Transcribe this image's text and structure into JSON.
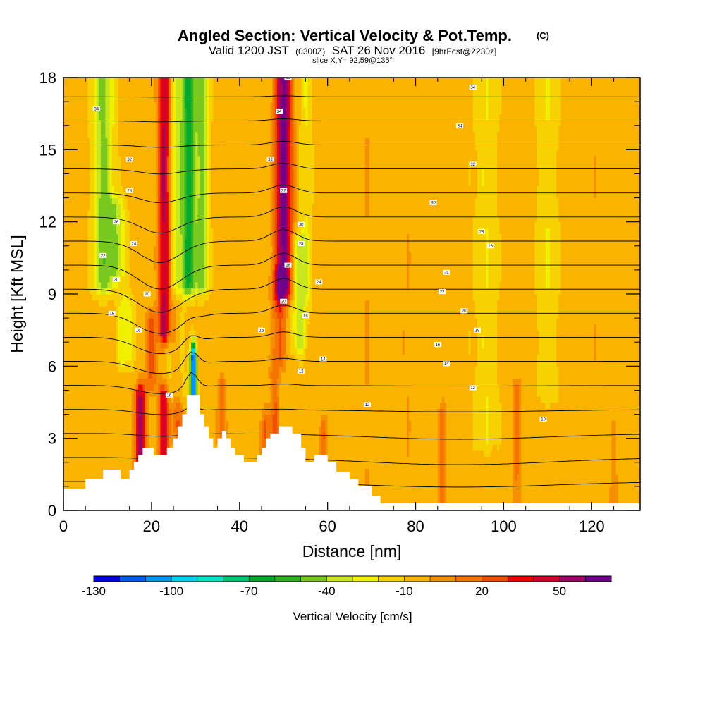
{
  "chart_data": {
    "type": "heatmap",
    "title": "Angled Section: Vertical Velocity & Pot.Temp.",
    "title_mark": "(C)",
    "subtitle": {
      "prefix": "Valid 1200 JST",
      "utc": "(0300Z)",
      "date": "SAT 26 Nov 2016",
      "forecast": "[9hrFcst@2230z]"
    },
    "slice": "slice X,Y= 92,59@135°",
    "xlabel": "Distance [nm]",
    "ylabel": "Height [Kft MSL]",
    "xlim": [
      0,
      131
    ],
    "ylim": [
      0,
      18
    ],
    "xticks": [
      "0",
      "20",
      "40",
      "60",
      "80",
      "100",
      "120"
    ],
    "yticks": [
      "0",
      "3",
      "6",
      "9",
      "12",
      "15",
      "18"
    ],
    "colorbar": {
      "label": "Vertical Velocity [cm/s]",
      "min": -130,
      "max": 70,
      "step": 10,
      "tick_labels": [
        "-130",
        "-100",
        "-70",
        "-40",
        "-10",
        "20",
        "50"
      ],
      "colors": [
        "#0000e0",
        "#005cf0",
        "#0096f0",
        "#00d2f0",
        "#00e6c8",
        "#00c878",
        "#00a82c",
        "#2eb41e",
        "#78c81e",
        "#c8e61e",
        "#f0f000",
        "#f6d200",
        "#fab400",
        "#f59100",
        "#f57500",
        "#f04e00",
        "#f00000",
        "#d2002d",
        "#a00064",
        "#70008a"
      ]
    },
    "velocity_field": {
      "base": -6,
      "features": [
        {
          "x": 9,
          "z0": 9.5,
          "z1": 18,
          "width": 2.2,
          "peak": -38
        },
        {
          "x": 12,
          "z0": 10,
          "z1": 12.5,
          "width": 2,
          "peak": -30
        },
        {
          "x": 14,
          "z0": 6.5,
          "z1": 8.5,
          "width": 1.8,
          "peak": -22
        },
        {
          "x": 17.5,
          "z0": 0,
          "z1": 4.7,
          "width": 1.2,
          "peak": 62
        },
        {
          "x": 20,
          "z0": 5.5,
          "z1": 7.8,
          "width": 1.4,
          "peak": 26
        },
        {
          "x": 22.8,
          "z0": 0,
          "z1": 4.7,
          "width": 1.1,
          "peak": 54
        },
        {
          "x": 23,
          "z0": 7.5,
          "z1": 18,
          "width": 1.4,
          "peak": 60
        },
        {
          "x": 25.8,
          "z0": 5,
          "z1": 18,
          "width": 1.8,
          "peak": -25
        },
        {
          "x": 25.8,
          "z0": 3.5,
          "z1": 8.5,
          "width": 1.3,
          "peak": 28
        },
        {
          "x": 28.5,
          "z0": 9.5,
          "z1": 18,
          "width": 1.6,
          "peak": -55
        },
        {
          "x": 29.5,
          "z0": 4.6,
          "z1": 6.4,
          "width": 0.7,
          "peak": -115
        },
        {
          "x": 31.5,
          "z0": 9.5,
          "z1": 18,
          "width": 1.4,
          "peak": -38
        },
        {
          "x": 36,
          "z0": 2.5,
          "z1": 5,
          "width": 0.9,
          "peak": 26
        },
        {
          "x": 46,
          "z0": 0,
          "z1": 3.6,
          "width": 1.3,
          "peak": 24
        },
        {
          "x": 48,
          "z0": 3,
          "z1": 5.5,
          "width": 1,
          "peak": 26
        },
        {
          "x": 50,
          "z0": 9.2,
          "z1": 18,
          "width": 1.9,
          "peak": 70
        },
        {
          "x": 49,
          "z0": 6.5,
          "z1": 9.5,
          "width": 1.6,
          "peak": 28
        },
        {
          "x": 53.5,
          "z0": 7,
          "z1": 11,
          "width": 1.7,
          "peak": -28
        },
        {
          "x": 55,
          "z0": 9,
          "z1": 18,
          "width": 1.4,
          "peak": -14
        },
        {
          "x": 59,
          "z0": 1.5,
          "z1": 3.3,
          "width": 0.8,
          "peak": 26
        },
        {
          "x": 69,
          "z0": 0,
          "z1": 18,
          "width": 1.3,
          "peak": 6
        },
        {
          "x": 78,
          "z0": 2,
          "z1": 12,
          "width": 1.2,
          "peak": 5
        },
        {
          "x": 86,
          "z0": 0,
          "z1": 4,
          "width": 0.9,
          "peak": 20
        },
        {
          "x": 96,
          "z0": 3,
          "z1": 18,
          "width": 2.5,
          "peak": -13
        },
        {
          "x": 103,
          "z0": 0,
          "z1": 5,
          "width": 0.9,
          "peak": 18
        },
        {
          "x": 110,
          "z0": 5,
          "z1": 18,
          "width": 2.3,
          "peak": -13
        },
        {
          "x": 121,
          "z0": 3,
          "z1": 15,
          "width": 2,
          "peak": 4
        },
        {
          "x": 125,
          "z0": 0,
          "z1": 3,
          "width": 0.8,
          "peak": 14
        }
      ]
    },
    "terrain": [
      [
        0,
        0.9
      ],
      [
        5,
        0.9
      ],
      [
        5,
        1.3
      ],
      [
        9,
        1.3
      ],
      [
        9,
        1.7
      ],
      [
        13,
        1.7
      ],
      [
        13,
        1.3
      ],
      [
        15,
        1.3
      ],
      [
        15,
        1.7
      ],
      [
        16,
        1.7
      ],
      [
        16,
        2.0
      ],
      [
        17,
        2.0
      ],
      [
        17,
        2.3
      ],
      [
        18,
        2.3
      ],
      [
        18,
        2.6
      ],
      [
        20.5,
        2.6
      ],
      [
        20.5,
        2.3
      ],
      [
        23.5,
        2.3
      ],
      [
        23.5,
        2.6
      ],
      [
        25,
        2.6
      ],
      [
        25,
        3.0
      ],
      [
        26,
        3.0
      ],
      [
        26,
        3.5
      ],
      [
        27,
        3.5
      ],
      [
        27,
        4.0
      ],
      [
        28,
        4.0
      ],
      [
        28,
        4.8
      ],
      [
        31,
        4.8
      ],
      [
        31,
        4.0
      ],
      [
        32,
        4.0
      ],
      [
        32,
        3.5
      ],
      [
        33,
        3.5
      ],
      [
        33,
        3.0
      ],
      [
        34,
        3.0
      ],
      [
        34,
        2.6
      ],
      [
        35,
        2.6
      ],
      [
        35,
        3.0
      ],
      [
        36,
        3.0
      ],
      [
        36,
        3.3
      ],
      [
        37,
        3.3
      ],
      [
        37,
        3.0
      ],
      [
        38,
        3.0
      ],
      [
        38,
        2.6
      ],
      [
        39,
        2.6
      ],
      [
        39,
        2.3
      ],
      [
        41,
        2.3
      ],
      [
        41,
        2.0
      ],
      [
        44,
        2.0
      ],
      [
        44,
        2.3
      ],
      [
        45,
        2.3
      ],
      [
        45,
        2.6
      ],
      [
        46,
        2.6
      ],
      [
        46,
        3.0
      ],
      [
        47,
        3.0
      ],
      [
        47,
        3.2
      ],
      [
        49,
        3.2
      ],
      [
        49,
        3.5
      ],
      [
        52,
        3.5
      ],
      [
        52,
        3.2
      ],
      [
        54,
        3.2
      ],
      [
        54,
        2.6
      ],
      [
        55,
        2.6
      ],
      [
        55,
        2.0
      ],
      [
        57,
        2.0
      ],
      [
        57,
        2.3
      ],
      [
        60,
        2.3
      ],
      [
        60,
        2.0
      ],
      [
        62,
        2.0
      ],
      [
        62,
        1.6
      ],
      [
        65,
        1.6
      ],
      [
        65,
        1.3
      ],
      [
        67,
        1.3
      ],
      [
        67,
        1.0
      ],
      [
        70,
        1.0
      ],
      [
        70,
        0.6
      ],
      [
        72,
        0.6
      ],
      [
        72,
        0.3
      ],
      [
        131,
        0.3
      ]
    ],
    "isentropes": {
      "interval": 2,
      "levels": [
        -4,
        -2,
        0,
        2,
        4,
        6,
        8,
        10,
        12,
        14,
        16,
        18,
        20,
        22,
        24,
        26,
        28,
        30,
        32,
        34,
        36
      ],
      "labels": [
        {
          "x": 7.5,
          "z": 16.7,
          "text": "34"
        },
        {
          "x": 15,
          "z": 14.6,
          "text": "32"
        },
        {
          "x": 15,
          "z": 13.3,
          "text": "28"
        },
        {
          "x": 12,
          "z": 12.0,
          "text": "26"
        },
        {
          "x": 16,
          "z": 11.1,
          "text": "24"
        },
        {
          "x": 9,
          "z": 10.6,
          "text": "22"
        },
        {
          "x": 12,
          "z": 9.6,
          "text": "20"
        },
        {
          "x": 19,
          "z": 9.0,
          "text": "20"
        },
        {
          "x": 11,
          "z": 8.2,
          "text": "18"
        },
        {
          "x": 17,
          "z": 7.5,
          "text": "16"
        },
        {
          "x": 24,
          "z": 4.8,
          "text": "16"
        },
        {
          "x": 51,
          "z": 18.0,
          "text": "36"
        },
        {
          "x": 49,
          "z": 16.6,
          "text": "34"
        },
        {
          "x": 47,
          "z": 14.6,
          "text": "32"
        },
        {
          "x": 50,
          "z": 13.3,
          "text": "32"
        },
        {
          "x": 54,
          "z": 11.9,
          "text": "30"
        },
        {
          "x": 54,
          "z": 11.1,
          "text": "28"
        },
        {
          "x": 51,
          "z": 10.2,
          "text": "26"
        },
        {
          "x": 58,
          "z": 9.5,
          "text": "24"
        },
        {
          "x": 50,
          "z": 8.7,
          "text": "20"
        },
        {
          "x": 55,
          "z": 8.1,
          "text": "18"
        },
        {
          "x": 45,
          "z": 7.5,
          "text": "16"
        },
        {
          "x": 59,
          "z": 6.3,
          "text": "14"
        },
        {
          "x": 54,
          "z": 5.8,
          "text": "12"
        },
        {
          "x": 69,
          "z": 4.4,
          "text": "12"
        },
        {
          "x": 93,
          "z": 17.6,
          "text": "34"
        },
        {
          "x": 90,
          "z": 16.0,
          "text": "34"
        },
        {
          "x": 93,
          "z": 14.4,
          "text": "32"
        },
        {
          "x": 84,
          "z": 12.8,
          "text": "30"
        },
        {
          "x": 95,
          "z": 11.6,
          "text": "28"
        },
        {
          "x": 97,
          "z": 11.0,
          "text": "26"
        },
        {
          "x": 87,
          "z": 9.9,
          "text": "24"
        },
        {
          "x": 86,
          "z": 9.1,
          "text": "22"
        },
        {
          "x": 91,
          "z": 8.3,
          "text": "20"
        },
        {
          "x": 94,
          "z": 7.5,
          "text": "18"
        },
        {
          "x": 85,
          "z": 6.9,
          "text": "16"
        },
        {
          "x": 87,
          "z": 6.1,
          "text": "14"
        },
        {
          "x": 93,
          "z": 5.1,
          "text": "12"
        },
        {
          "x": 109,
          "z": 3.8,
          "text": "10"
        }
      ]
    }
  }
}
